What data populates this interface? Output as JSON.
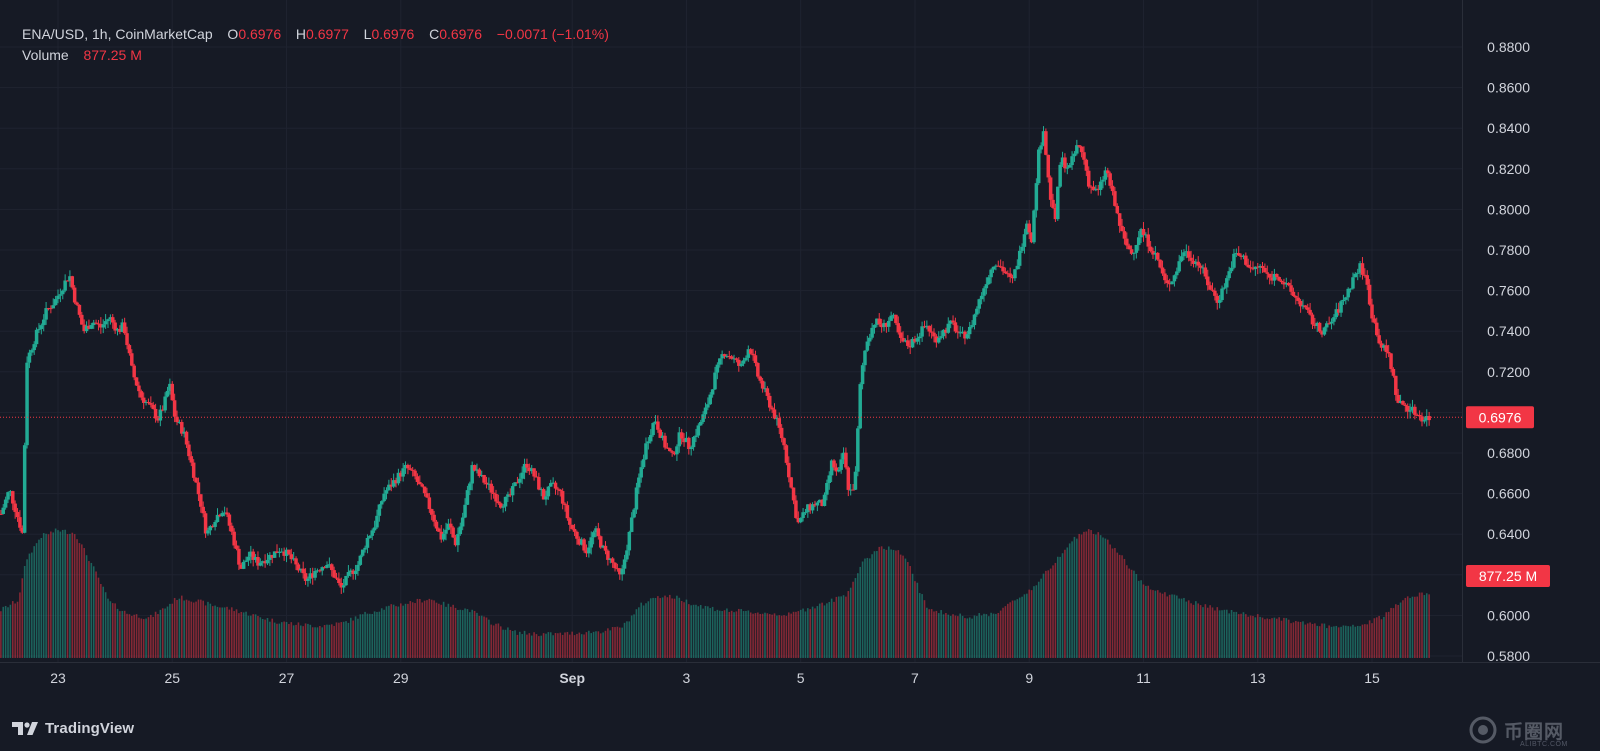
{
  "legend": {
    "symbol": "ENA/USD, 1h, CoinMarketCap",
    "o_label": "O",
    "o_value": "0.6976",
    "h_label": "H",
    "h_value": "0.6977",
    "l_label": "L",
    "l_value": "0.6976",
    "c_label": "C",
    "c_value": "0.6976",
    "change": "−0.0071 (−1.01%)",
    "volume_label": "Volume",
    "volume_value": "877.25 M"
  },
  "price_tag": "0.6976",
  "volume_tag": "877.25 M",
  "brand": "TradingView",
  "watermark": "币圈网",
  "watermark_sub": "ALIBTC.COM",
  "colors": {
    "background": "#161a25",
    "up": "#22ab94",
    "down": "#f23645",
    "grid": "#1f2330",
    "axis_text": "#d1d4dc",
    "price_line": "#f23645"
  },
  "chart_data": {
    "type": "candlestick",
    "symbol": "ENA/USD",
    "interval": "1h",
    "y_ticks": [
      "0.8800",
      "0.8600",
      "0.8400",
      "0.8200",
      "0.8000",
      "0.7800",
      "0.7600",
      "0.7400",
      "0.7200",
      "0.7000",
      "0.6800",
      "0.6600",
      "0.6400",
      "0.6200",
      "0.6000",
      "0.5800"
    ],
    "x_ticks": [
      {
        "label": "23",
        "day": 23,
        "bold": false
      },
      {
        "label": "25",
        "day": 25,
        "bold": false
      },
      {
        "label": "27",
        "day": 27,
        "bold": false
      },
      {
        "label": "29",
        "day": 29,
        "bold": false
      },
      {
        "label": "Sep",
        "day": 32,
        "bold": true
      },
      {
        "label": "3",
        "day": 34,
        "bold": false
      },
      {
        "label": "5",
        "day": 36,
        "bold": false
      },
      {
        "label": "7",
        "day": 38,
        "bold": false
      },
      {
        "label": "9",
        "day": 40,
        "bold": false
      },
      {
        "label": "11",
        "day": 42,
        "bold": false
      },
      {
        "label": "13",
        "day": 44,
        "bold": false
      },
      {
        "label": "15",
        "day": 46,
        "bold": false
      }
    ],
    "ylim": [
      0.58,
      0.89
    ],
    "x_range_days": [
      22.0,
      47.25
    ],
    "last_price": 0.6976,
    "price_path": [
      [
        22.0,
        0.65
      ],
      [
        22.15,
        0.662
      ],
      [
        22.3,
        0.648
      ],
      [
        22.38,
        0.64
      ],
      [
        22.45,
        0.725
      ],
      [
        22.6,
        0.737
      ],
      [
        22.8,
        0.75
      ],
      [
        22.95,
        0.755
      ],
      [
        23.1,
        0.763
      ],
      [
        23.2,
        0.768
      ],
      [
        23.3,
        0.755
      ],
      [
        23.45,
        0.74
      ],
      [
        23.6,
        0.745
      ],
      [
        23.75,
        0.742
      ],
      [
        23.9,
        0.747
      ],
      [
        24.05,
        0.74
      ],
      [
        24.15,
        0.743
      ],
      [
        24.3,
        0.72
      ],
      [
        24.45,
        0.708
      ],
      [
        24.6,
        0.703
      ],
      [
        24.75,
        0.697
      ],
      [
        24.85,
        0.703
      ],
      [
        24.95,
        0.714
      ],
      [
        25.05,
        0.697
      ],
      [
        25.2,
        0.69
      ],
      [
        25.35,
        0.673
      ],
      [
        25.5,
        0.655
      ],
      [
        25.6,
        0.64
      ],
      [
        25.75,
        0.648
      ],
      [
        25.9,
        0.653
      ],
      [
        26.05,
        0.64
      ],
      [
        26.2,
        0.623
      ],
      [
        26.35,
        0.63
      ],
      [
        26.5,
        0.626
      ],
      [
        26.7,
        0.629
      ],
      [
        26.9,
        0.633
      ],
      [
        27.05,
        0.629
      ],
      [
        27.2,
        0.623
      ],
      [
        27.35,
        0.617
      ],
      [
        27.5,
        0.622
      ],
      [
        27.7,
        0.626
      ],
      [
        27.85,
        0.619
      ],
      [
        27.95,
        0.613
      ],
      [
        28.1,
        0.62
      ],
      [
        28.25,
        0.625
      ],
      [
        28.4,
        0.637
      ],
      [
        28.55,
        0.645
      ],
      [
        28.7,
        0.66
      ],
      [
        28.85,
        0.665
      ],
      [
        29.0,
        0.67
      ],
      [
        29.1,
        0.673
      ],
      [
        29.25,
        0.668
      ],
      [
        29.4,
        0.66
      ],
      [
        29.55,
        0.65
      ],
      [
        29.7,
        0.638
      ],
      [
        29.85,
        0.645
      ],
      [
        29.95,
        0.635
      ],
      [
        30.1,
        0.65
      ],
      [
        30.25,
        0.673
      ],
      [
        30.4,
        0.668
      ],
      [
        30.55,
        0.663
      ],
      [
        30.75,
        0.655
      ],
      [
        30.9,
        0.658
      ],
      [
        31.05,
        0.667
      ],
      [
        31.2,
        0.675
      ],
      [
        31.35,
        0.668
      ],
      [
        31.5,
        0.658
      ],
      [
        31.65,
        0.664
      ],
      [
        31.8,
        0.66
      ],
      [
        31.95,
        0.645
      ],
      [
        32.1,
        0.638
      ],
      [
        32.25,
        0.632
      ],
      [
        32.4,
        0.642
      ],
      [
        32.55,
        0.632
      ],
      [
        32.7,
        0.626
      ],
      [
        32.85,
        0.618
      ],
      [
        33.0,
        0.64
      ],
      [
        33.15,
        0.665
      ],
      [
        33.3,
        0.685
      ],
      [
        33.45,
        0.697
      ],
      [
        33.6,
        0.685
      ],
      [
        33.75,
        0.678
      ],
      [
        33.9,
        0.69
      ],
      [
        34.05,
        0.683
      ],
      [
        34.2,
        0.692
      ],
      [
        34.35,
        0.702
      ],
      [
        34.5,
        0.718
      ],
      [
        34.65,
        0.73
      ],
      [
        34.8,
        0.727
      ],
      [
        34.95,
        0.722
      ],
      [
        35.1,
        0.733
      ],
      [
        35.25,
        0.718
      ],
      [
        35.4,
        0.708
      ],
      [
        35.55,
        0.698
      ],
      [
        35.7,
        0.685
      ],
      [
        35.85,
        0.66
      ],
      [
        35.95,
        0.645
      ],
      [
        36.1,
        0.652
      ],
      [
        36.25,
        0.655
      ],
      [
        36.4,
        0.655
      ],
      [
        36.55,
        0.676
      ],
      [
        36.65,
        0.668
      ],
      [
        36.75,
        0.68
      ],
      [
        36.85,
        0.66
      ],
      [
        36.95,
        0.665
      ],
      [
        37.05,
        0.717
      ],
      [
        37.15,
        0.735
      ],
      [
        37.3,
        0.745
      ],
      [
        37.45,
        0.742
      ],
      [
        37.6,
        0.748
      ],
      [
        37.75,
        0.735
      ],
      [
        37.9,
        0.733
      ],
      [
        38.05,
        0.738
      ],
      [
        38.2,
        0.743
      ],
      [
        38.35,
        0.736
      ],
      [
        38.5,
        0.74
      ],
      [
        38.65,
        0.744
      ],
      [
        38.8,
        0.737
      ],
      [
        38.95,
        0.74
      ],
      [
        39.1,
        0.753
      ],
      [
        39.25,
        0.765
      ],
      [
        39.4,
        0.775
      ],
      [
        39.55,
        0.77
      ],
      [
        39.7,
        0.764
      ],
      [
        39.85,
        0.78
      ],
      [
        39.95,
        0.795
      ],
      [
        40.05,
        0.785
      ],
      [
        40.15,
        0.825
      ],
      [
        40.25,
        0.84
      ],
      [
        40.35,
        0.81
      ],
      [
        40.45,
        0.793
      ],
      [
        40.55,
        0.825
      ],
      [
        40.7,
        0.82
      ],
      [
        40.85,
        0.832
      ],
      [
        40.95,
        0.826
      ],
      [
        41.05,
        0.812
      ],
      [
        41.2,
        0.808
      ],
      [
        41.35,
        0.82
      ],
      [
        41.5,
        0.802
      ],
      [
        41.65,
        0.785
      ],
      [
        41.8,
        0.778
      ],
      [
        41.95,
        0.79
      ],
      [
        42.1,
        0.783
      ],
      [
        42.25,
        0.775
      ],
      [
        42.4,
        0.762
      ],
      [
        42.55,
        0.768
      ],
      [
        42.7,
        0.78
      ],
      [
        42.85,
        0.776
      ],
      [
        43.0,
        0.772
      ],
      [
        43.15,
        0.762
      ],
      [
        43.3,
        0.755
      ],
      [
        43.45,
        0.765
      ],
      [
        43.6,
        0.778
      ],
      [
        43.75,
        0.776
      ],
      [
        43.9,
        0.77
      ],
      [
        44.05,
        0.772
      ],
      [
        44.2,
        0.766
      ],
      [
        44.35,
        0.768
      ],
      [
        44.5,
        0.762
      ],
      [
        44.65,
        0.757
      ],
      [
        44.8,
        0.752
      ],
      [
        44.95,
        0.745
      ],
      [
        45.1,
        0.74
      ],
      [
        45.25,
        0.743
      ],
      [
        45.4,
        0.75
      ],
      [
        45.55,
        0.758
      ],
      [
        45.7,
        0.768
      ],
      [
        45.8,
        0.772
      ],
      [
        45.9,
        0.765
      ],
      [
        46.0,
        0.748
      ],
      [
        46.15,
        0.733
      ],
      [
        46.3,
        0.728
      ],
      [
        46.45,
        0.705
      ],
      [
        46.6,
        0.703
      ],
      [
        46.75,
        0.7
      ],
      [
        46.9,
        0.697
      ],
      [
        47.0,
        0.6976
      ]
    ],
    "volume_scale": [
      0.0,
      1.0
    ],
    "volume_path": [
      [
        22.0,
        0.3
      ],
      [
        22.3,
        0.36
      ],
      [
        22.45,
        0.62
      ],
      [
        22.7,
        0.76
      ],
      [
        23.0,
        0.8
      ],
      [
        23.3,
        0.78
      ],
      [
        23.6,
        0.58
      ],
      [
        23.9,
        0.35
      ],
      [
        24.2,
        0.28
      ],
      [
        24.6,
        0.25
      ],
      [
        24.9,
        0.32
      ],
      [
        25.1,
        0.38
      ],
      [
        25.4,
        0.36
      ],
      [
        25.7,
        0.33
      ],
      [
        26.0,
        0.31
      ],
      [
        26.4,
        0.27
      ],
      [
        26.8,
        0.23
      ],
      [
        27.2,
        0.21
      ],
      [
        27.6,
        0.2
      ],
      [
        28.0,
        0.22
      ],
      [
        28.4,
        0.28
      ],
      [
        28.8,
        0.32
      ],
      [
        29.2,
        0.35
      ],
      [
        29.5,
        0.37
      ],
      [
        29.8,
        0.33
      ],
      [
        30.2,
        0.3
      ],
      [
        30.6,
        0.22
      ],
      [
        31.0,
        0.16
      ],
      [
        31.4,
        0.15
      ],
      [
        31.8,
        0.15
      ],
      [
        32.2,
        0.16
      ],
      [
        32.6,
        0.17
      ],
      [
        32.9,
        0.2
      ],
      [
        33.2,
        0.33
      ],
      [
        33.5,
        0.39
      ],
      [
        33.8,
        0.38
      ],
      [
        34.2,
        0.33
      ],
      [
        34.6,
        0.3
      ],
      [
        35.0,
        0.29
      ],
      [
        35.4,
        0.28
      ],
      [
        35.8,
        0.27
      ],
      [
        36.2,
        0.32
      ],
      [
        36.5,
        0.35
      ],
      [
        36.8,
        0.4
      ],
      [
        37.1,
        0.6
      ],
      [
        37.4,
        0.7
      ],
      [
        37.7,
        0.67
      ],
      [
        37.9,
        0.58
      ],
      [
        38.2,
        0.32
      ],
      [
        38.6,
        0.27
      ],
      [
        39.0,
        0.26
      ],
      [
        39.4,
        0.28
      ],
      [
        39.8,
        0.37
      ],
      [
        40.1,
        0.45
      ],
      [
        40.4,
        0.58
      ],
      [
        40.7,
        0.72
      ],
      [
        41.0,
        0.8
      ],
      [
        41.3,
        0.76
      ],
      [
        41.6,
        0.64
      ],
      [
        41.9,
        0.5
      ],
      [
        42.2,
        0.42
      ],
      [
        42.6,
        0.38
      ],
      [
        43.0,
        0.33
      ],
      [
        43.4,
        0.3
      ],
      [
        43.8,
        0.27
      ],
      [
        44.2,
        0.25
      ],
      [
        44.6,
        0.23
      ],
      [
        45.0,
        0.21
      ],
      [
        45.4,
        0.19
      ],
      [
        45.8,
        0.2
      ],
      [
        46.2,
        0.26
      ],
      [
        46.5,
        0.36
      ],
      [
        46.8,
        0.4
      ],
      [
        47.0,
        0.4
      ]
    ]
  }
}
